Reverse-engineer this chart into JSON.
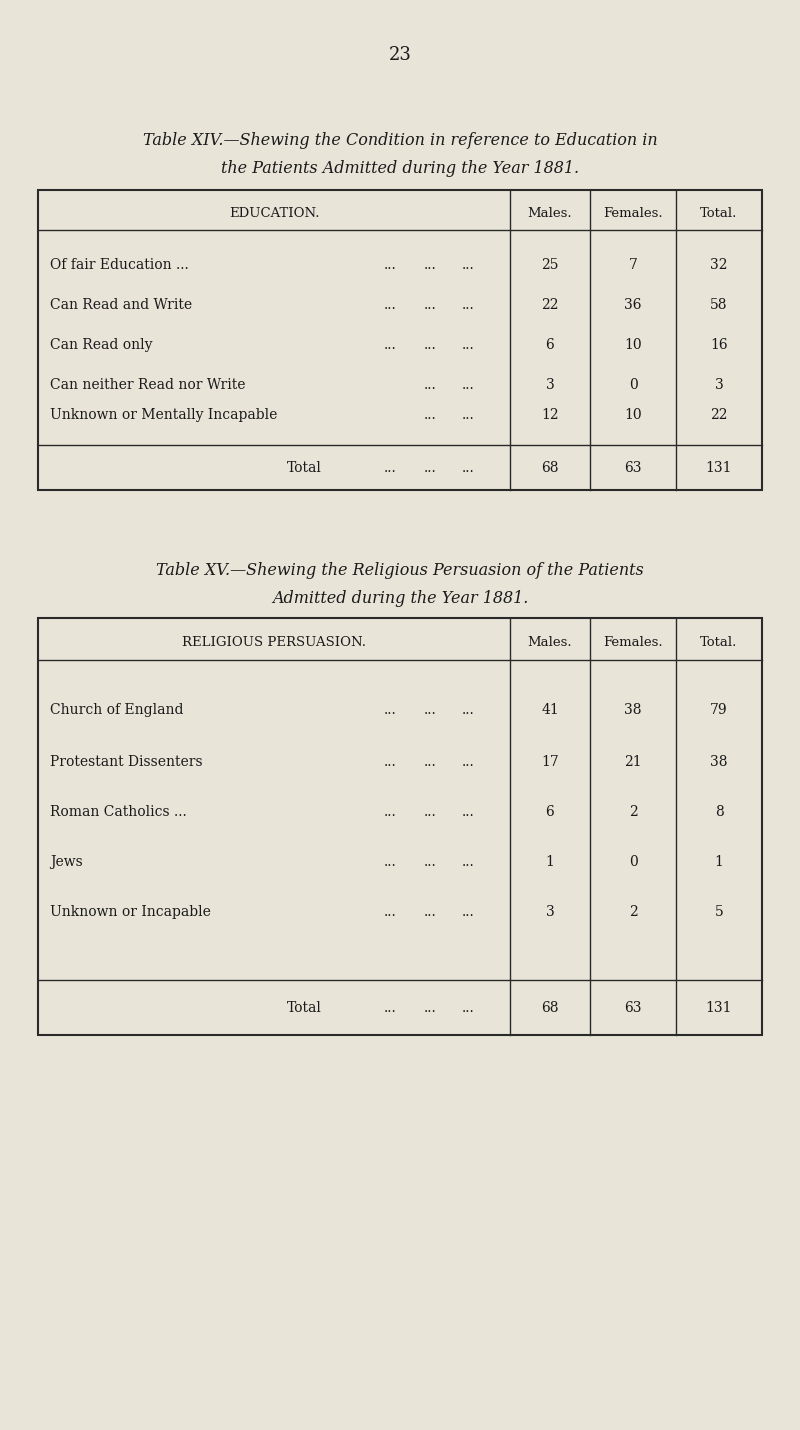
{
  "page_number": "23",
  "bg_color": "#e8e4d8",
  "text_color": "#1a1a1a",
  "table14_title_line1": "Table XIV.—Shewing the Condition in reference to Education in",
  "table14_title_line2": "the Patients Admitted during the Year 1881.",
  "table14_col_header": "EDUCATION.",
  "table14_col_males": "Males.",
  "table14_col_females": "Females.",
  "table14_col_total": "Total.",
  "table14_rows": [
    [
      "Of fair Education ...",
      "...",
      "...",
      "...",
      "25",
      "7",
      "32"
    ],
    [
      "Can Read and Write",
      "...",
      "...",
      "...",
      "22",
      "36",
      "58"
    ],
    [
      "Can Read only",
      "...",
      "...",
      "...",
      "6",
      "10",
      "16"
    ],
    [
      "Can neither Read nor Write",
      "...",
      "...",
      "3",
      "0",
      "3"
    ],
    [
      "Unknown or Mentally Incapable",
      "...",
      "...",
      "12",
      "10",
      "22"
    ]
  ],
  "table14_total_row": [
    "Total",
    "...",
    "...",
    "...",
    "68",
    "63",
    "131"
  ],
  "table15_title_line1": "Table XV.—Shewing the Religious Persuasion of the Patients",
  "table15_title_line2": "Admitted during the Year 1881.",
  "table15_col_header": "RELIGIOUS PERSUASION.",
  "table15_col_males": "Males.",
  "table15_col_females": "Females.",
  "table15_col_total": "Total.",
  "table15_rows": [
    [
      "Church of England",
      "...",
      "...",
      "...",
      "41",
      "38",
      "79"
    ],
    [
      "Protestant Dissenters",
      "...",
      "...",
      "...",
      "17",
      "21",
      "38"
    ],
    [
      "Roman Catholics ...",
      "...",
      "...",
      "...",
      "6",
      "2",
      "8"
    ],
    [
      "Jews",
      "...",
      "...",
      "...",
      "1",
      "0",
      "1"
    ],
    [
      "Unknown or Incapable",
      "...",
      "...",
      "...",
      "3",
      "2",
      "5"
    ]
  ],
  "table15_total_row": [
    "Total",
    "...",
    "...",
    "...",
    "68",
    "63",
    "131"
  ]
}
